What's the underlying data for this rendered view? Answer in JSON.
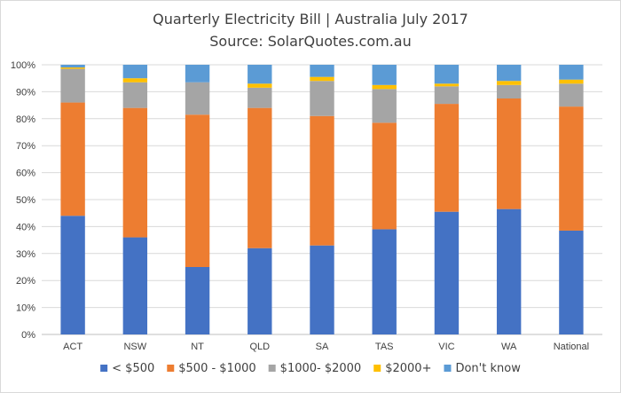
{
  "chart_data": {
    "type": "bar",
    "stacked": true,
    "title": "Quarterly Electricity Bill  | Australia July 2017",
    "subtitle": "Source: SolarQuotes.com.au",
    "xlabel": "",
    "ylabel": "",
    "ylim": [
      0,
      100
    ],
    "y_ticks": [
      "0%",
      "10%",
      "20%",
      "30%",
      "40%",
      "50%",
      "60%",
      "70%",
      "80%",
      "90%",
      "100%"
    ],
    "grid": true,
    "legend_position": "bottom",
    "categories": [
      "ACT",
      "NSW",
      "NT",
      "QLD",
      "SA",
      "TAS",
      "VIC",
      "WA",
      "National"
    ],
    "series": [
      {
        "name": "< $500",
        "color": "#4472C4",
        "values": [
          44,
          36,
          25,
          32,
          33,
          39,
          45.5,
          46.5,
          38.5
        ]
      },
      {
        "name": "$500 - $1000",
        "color": "#ED7D31",
        "values": [
          42,
          48,
          56.5,
          52,
          48,
          39.5,
          40,
          41,
          46
        ]
      },
      {
        "name": "$1000- $2000",
        "color": "#A5A5A5",
        "values": [
          12.5,
          9.5,
          12,
          7.5,
          13,
          12.5,
          6.5,
          5,
          8.5
        ]
      },
      {
        "name": "$2000+",
        "color": "#FFC000",
        "values": [
          0.5,
          1.5,
          0,
          1.5,
          1.5,
          1.5,
          1,
          1.5,
          1.5
        ]
      },
      {
        "name": "Don't know",
        "color": "#5B9BD5",
        "values": [
          1,
          5,
          6.5,
          7,
          4.5,
          7.5,
          7,
          6,
          5.5
        ]
      }
    ]
  }
}
